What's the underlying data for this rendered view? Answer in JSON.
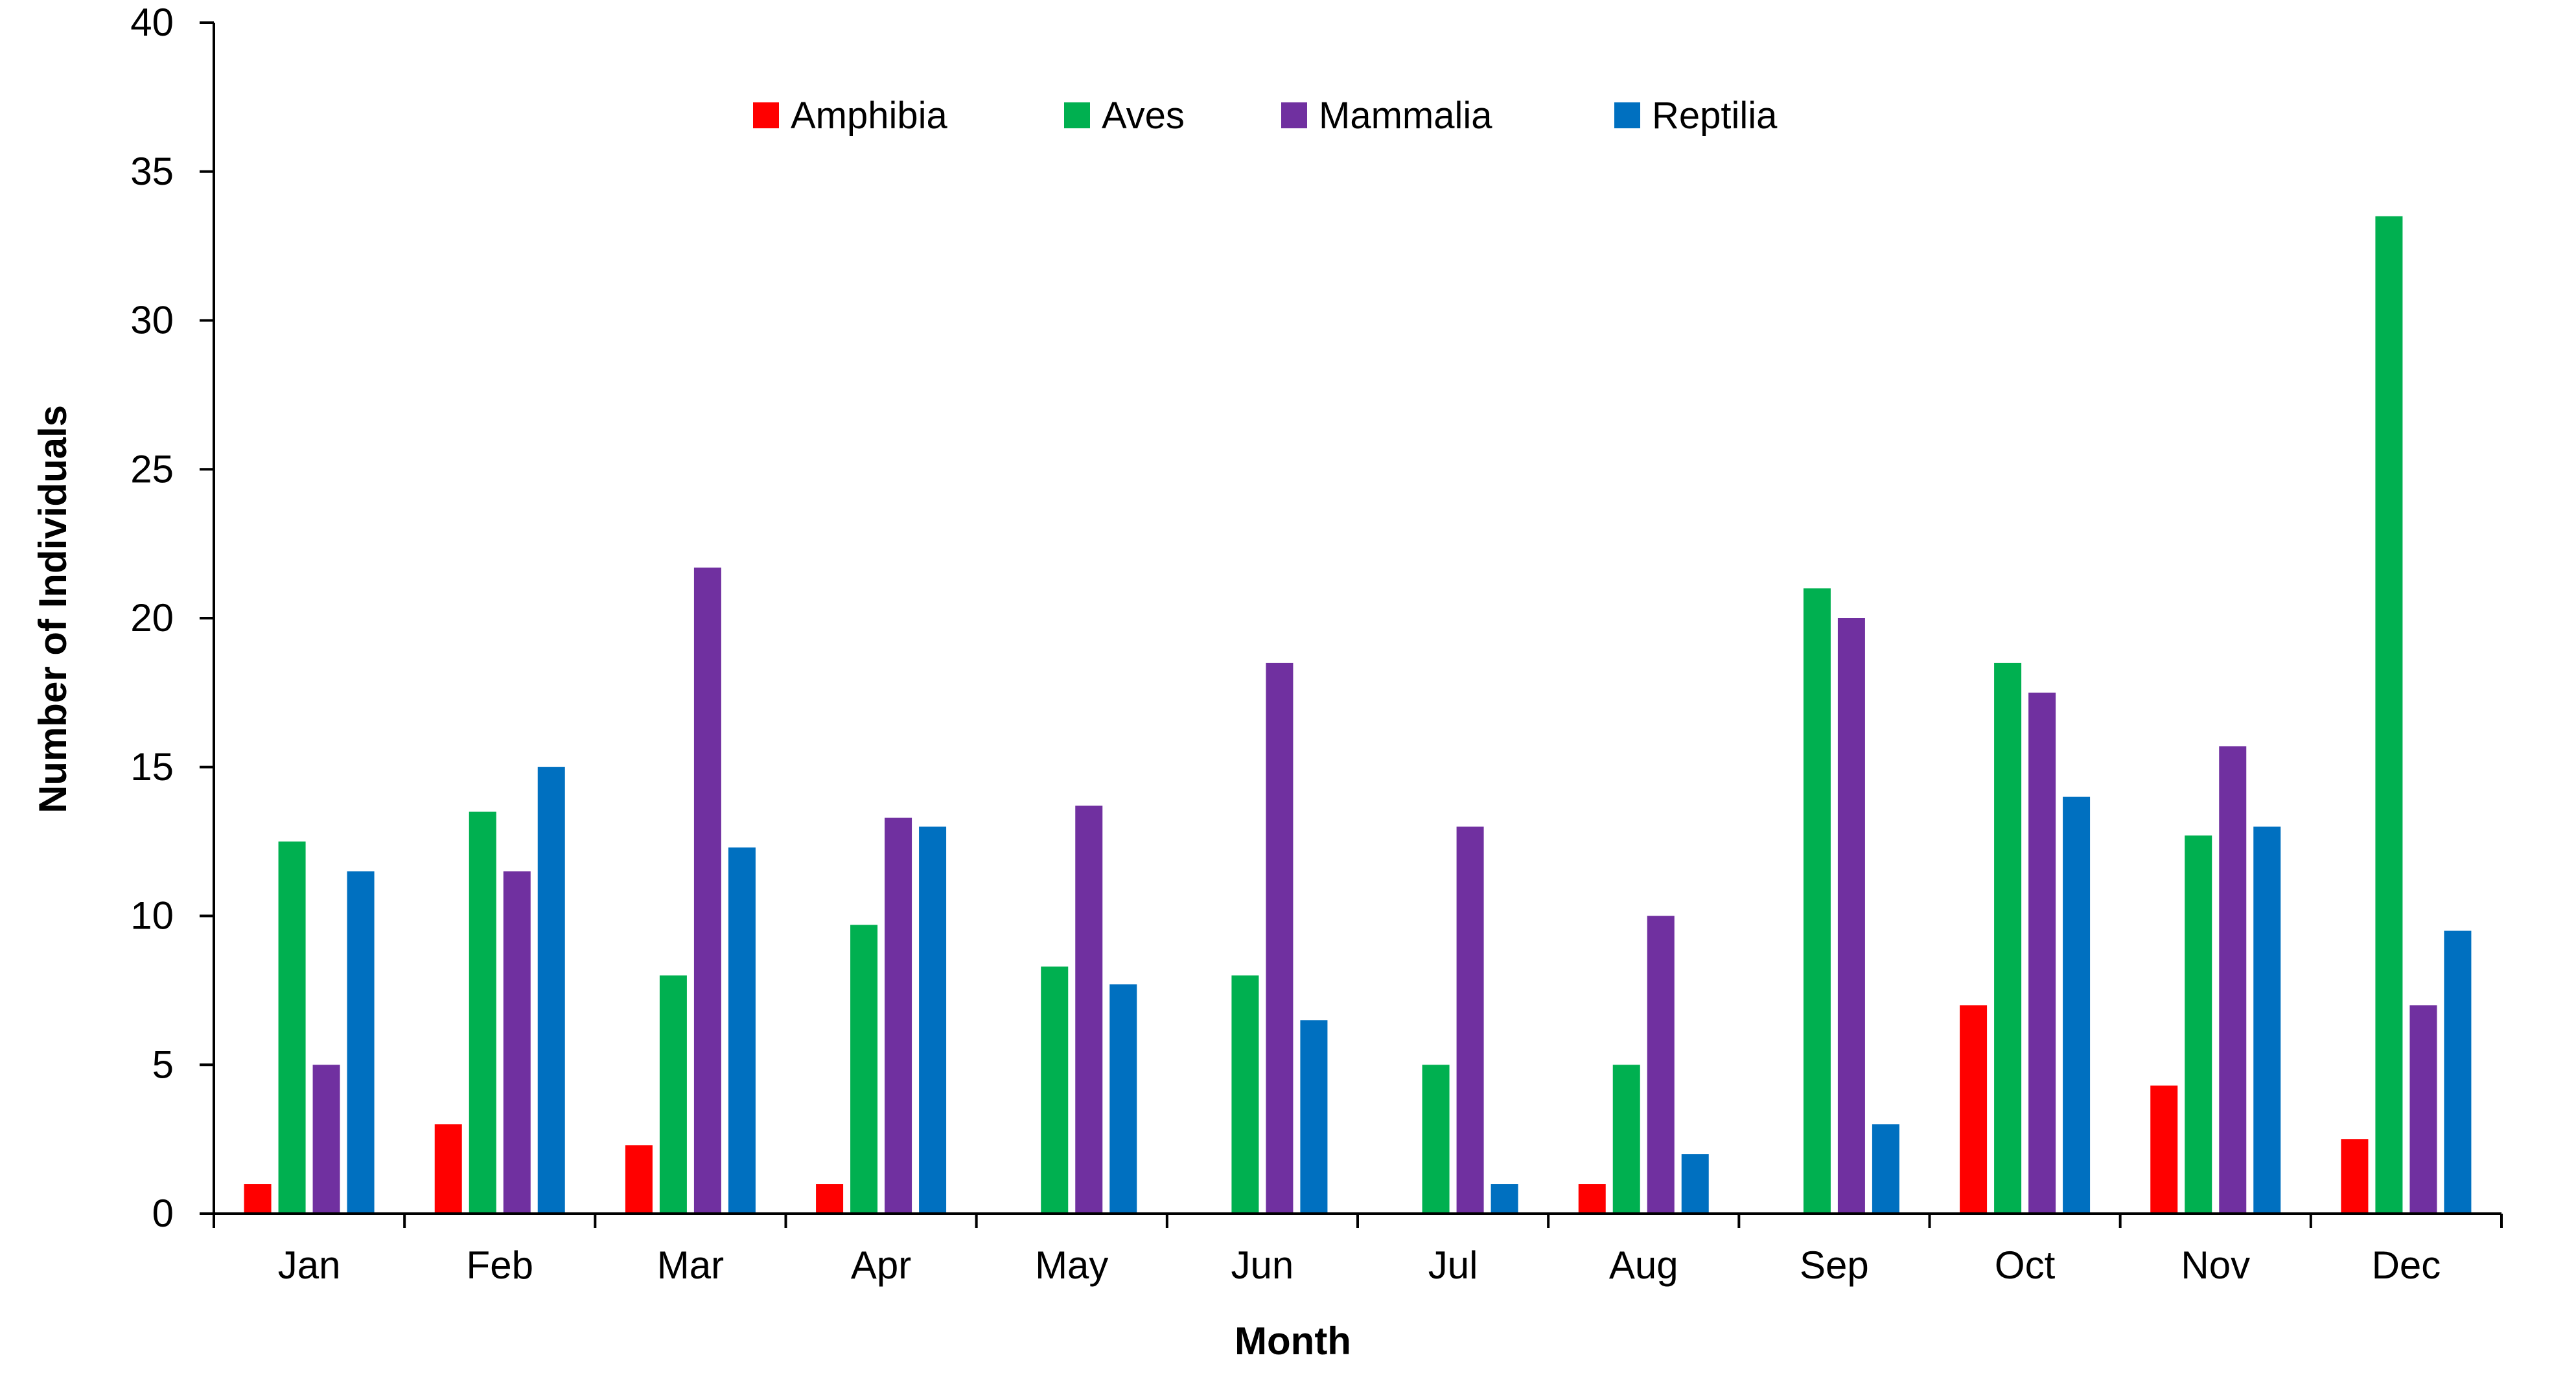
{
  "chart_data": {
    "type": "bar",
    "title": "",
    "xlabel": "Month",
    "ylabel": "Number of Individuals",
    "ylim": [
      0,
      40
    ],
    "yticks": [
      0,
      5,
      10,
      15,
      20,
      25,
      30,
      35,
      40
    ],
    "grid": false,
    "legend_position": "top-center",
    "categories": [
      "Jan",
      "Feb",
      "Mar",
      "Apr",
      "May",
      "Jun",
      "Jul",
      "Aug",
      "Sep",
      "Oct",
      "Nov",
      "Dec"
    ],
    "series": [
      {
        "name": "Amphibia",
        "color": "#ff0000",
        "values": [
          1,
          3,
          2.3,
          1,
          0,
          0,
          0,
          1,
          0,
          7,
          4.3,
          2.5
        ]
      },
      {
        "name": "Aves",
        "color": "#00b050",
        "values": [
          12.5,
          13.5,
          8,
          9.7,
          8.3,
          8,
          5,
          5,
          21,
          18.5,
          12.7,
          33.5
        ]
      },
      {
        "name": "Mammalia",
        "color": "#7030a0",
        "values": [
          5,
          11.5,
          21.7,
          13.3,
          13.7,
          18.5,
          13,
          10,
          20,
          17.5,
          15.7,
          7
        ]
      },
      {
        "name": "Reptilia",
        "color": "#0070c0",
        "values": [
          11.5,
          15,
          12.3,
          13,
          7.7,
          6.5,
          1,
          2,
          3,
          14,
          13,
          9.5
        ]
      }
    ]
  }
}
